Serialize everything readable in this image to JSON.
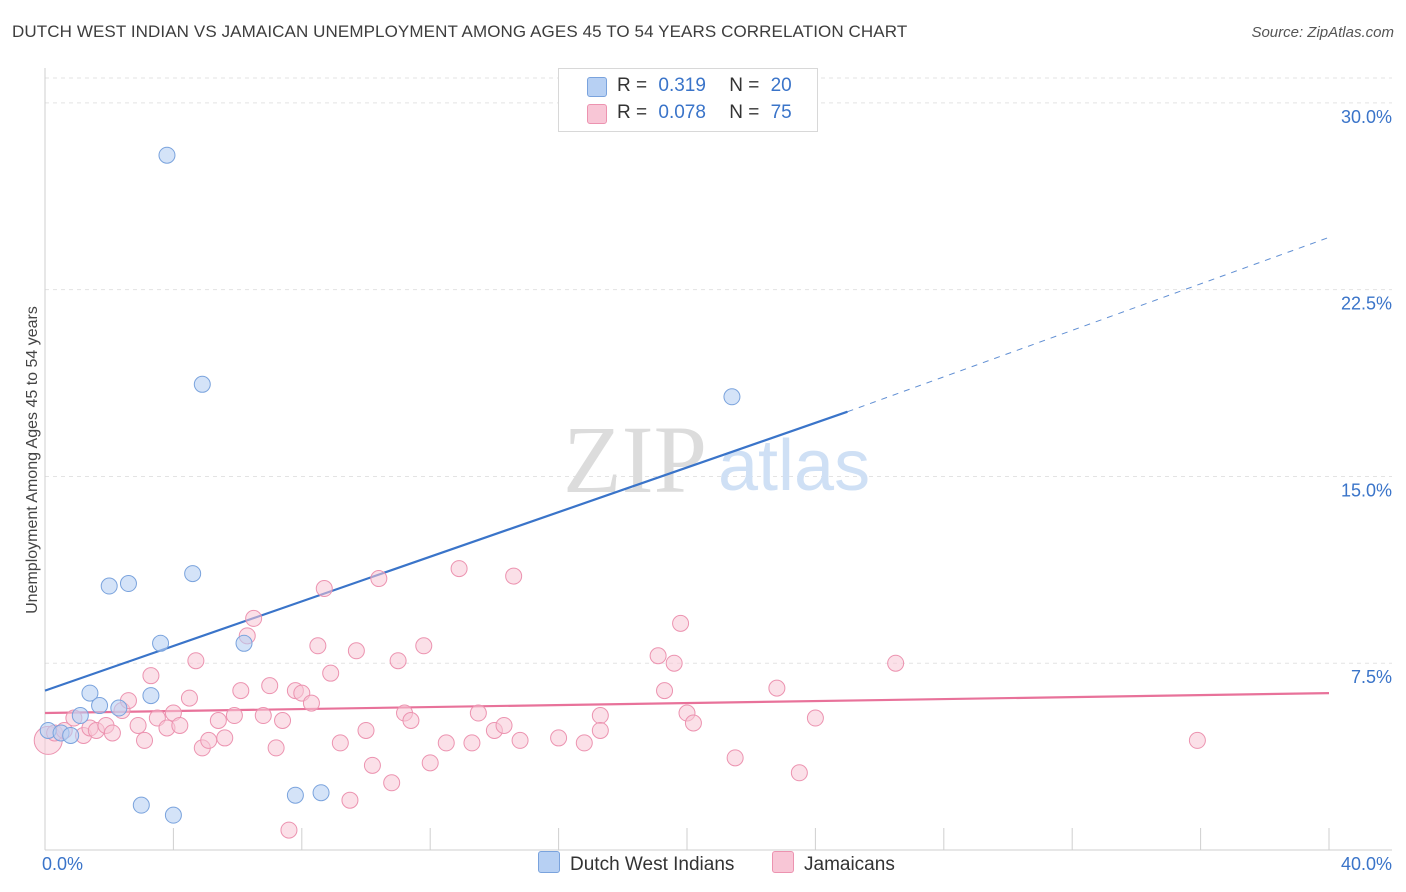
{
  "title": "DUTCH WEST INDIAN VS JAMAICAN UNEMPLOYMENT AMONG AGES 45 TO 54 YEARS CORRELATION CHART",
  "source": "Source: ZipAtlas.com",
  "watermark": {
    "zip": "ZIP",
    "atlas": "atlas"
  },
  "legend": {
    "rows": [
      {
        "r_label": "R =",
        "r_value": "0.319",
        "n_label": "N =",
        "n_value": "20"
      },
      {
        "r_label": "R =",
        "r_value": "0.078",
        "n_label": "N =",
        "n_value": "75"
      }
    ]
  },
  "bottom_legend": {
    "dutch": "Dutch West Indians",
    "jamaicans": "Jamaicans"
  },
  "colors": {
    "blue_fill": "#b7d0f3",
    "blue_stroke": "#7aa3dd",
    "blue_line": "#3a74c9",
    "pink_fill": "#f8c6d6",
    "pink_stroke": "#ec93b0",
    "pink_line": "#e8729a",
    "grid": "#e3e3e3",
    "tick_text": "#3a74c9"
  },
  "chart_data": {
    "type": "scatter",
    "title": "DUTCH WEST INDIAN VS JAMAICAN UNEMPLOYMENT AMONG AGES 45 TO 54 YEARS CORRELATION CHART",
    "xlabel": "",
    "ylabel": "Unemployment Among Ages 45 to 54 years",
    "xlim": [
      0,
      40
    ],
    "ylim": [
      0,
      31
    ],
    "x_tick_labels": [
      "0.0%",
      "40.0%"
    ],
    "y_ticks": [
      7.5,
      15.0,
      22.5,
      30.0
    ],
    "y_tick_labels": [
      "7.5%",
      "15.0%",
      "22.5%",
      "30.0%"
    ],
    "series": [
      {
        "name": "Dutch West Indians",
        "r": 0.319,
        "n": 20,
        "trend": {
          "x0": 0,
          "y0": 6.4,
          "x1": 25,
          "y1": 17.6,
          "dash_to_x": 40,
          "dash_to_y": 24.6
        },
        "points": [
          [
            0.1,
            4.8
          ],
          [
            0.5,
            4.7
          ],
          [
            0.8,
            4.6
          ],
          [
            1.1,
            5.4
          ],
          [
            1.4,
            6.3
          ],
          [
            1.7,
            5.8
          ],
          [
            2.0,
            10.6
          ],
          [
            2.3,
            5.7
          ],
          [
            2.6,
            10.7
          ],
          [
            3.0,
            1.8
          ],
          [
            3.3,
            6.2
          ],
          [
            3.6,
            8.3
          ],
          [
            3.8,
            27.9
          ],
          [
            4.0,
            1.4
          ],
          [
            4.6,
            11.1
          ],
          [
            4.9,
            18.7
          ],
          [
            6.2,
            8.3
          ],
          [
            7.8,
            2.2
          ],
          [
            8.6,
            2.3
          ],
          [
            21.4,
            18.2
          ]
        ]
      },
      {
        "name": "Jamaicans",
        "r": 0.078,
        "n": 75,
        "trend": {
          "x0": 0,
          "y0": 5.5,
          "x1": 40,
          "y1": 6.3
        },
        "points": [
          [
            0.1,
            4.4
          ],
          [
            0.3,
            4.7
          ],
          [
            0.6,
            4.8
          ],
          [
            0.9,
            5.3
          ],
          [
            1.2,
            4.6
          ],
          [
            1.4,
            4.9
          ],
          [
            1.6,
            4.8
          ],
          [
            1.9,
            5.0
          ],
          [
            2.1,
            4.7
          ],
          [
            2.4,
            5.6
          ],
          [
            2.6,
            6.0
          ],
          [
            2.9,
            5.0
          ],
          [
            3.1,
            4.4
          ],
          [
            3.3,
            7.0
          ],
          [
            3.5,
            5.3
          ],
          [
            3.8,
            4.9
          ],
          [
            4.0,
            5.5
          ],
          [
            4.2,
            5.0
          ],
          [
            4.5,
            6.1
          ],
          [
            4.7,
            7.6
          ],
          [
            4.9,
            4.1
          ],
          [
            5.1,
            4.4
          ],
          [
            5.4,
            5.2
          ],
          [
            5.6,
            4.5
          ],
          [
            5.9,
            5.4
          ],
          [
            6.1,
            6.4
          ],
          [
            6.3,
            8.6
          ],
          [
            6.5,
            9.3
          ],
          [
            6.8,
            5.4
          ],
          [
            7.0,
            6.6
          ],
          [
            7.2,
            4.1
          ],
          [
            7.4,
            5.2
          ],
          [
            7.6,
            0.8
          ],
          [
            7.8,
            6.4
          ],
          [
            8.0,
            6.3
          ],
          [
            8.3,
            5.9
          ],
          [
            8.5,
            8.2
          ],
          [
            8.7,
            10.5
          ],
          [
            8.9,
            7.1
          ],
          [
            9.2,
            4.3
          ],
          [
            9.5,
            2.0
          ],
          [
            9.7,
            8.0
          ],
          [
            10.0,
            4.8
          ],
          [
            10.2,
            3.4
          ],
          [
            10.4,
            10.9
          ],
          [
            10.8,
            2.7
          ],
          [
            11.0,
            7.6
          ],
          [
            11.2,
            5.5
          ],
          [
            11.4,
            5.2
          ],
          [
            11.8,
            8.2
          ],
          [
            12.0,
            3.5
          ],
          [
            12.5,
            4.3
          ],
          [
            12.9,
            11.3
          ],
          [
            13.3,
            4.3
          ],
          [
            14.0,
            4.8
          ],
          [
            14.3,
            5.0
          ],
          [
            14.6,
            11.0
          ],
          [
            14.8,
            4.4
          ],
          [
            16.0,
            4.5
          ],
          [
            16.8,
            4.3
          ],
          [
            17.3,
            5.4
          ],
          [
            17.3,
            4.8
          ],
          [
            19.1,
            7.8
          ],
          [
            19.3,
            6.4
          ],
          [
            19.6,
            7.5
          ],
          [
            19.8,
            9.1
          ],
          [
            20.0,
            5.5
          ],
          [
            20.2,
            5.1
          ],
          [
            21.5,
            3.7
          ],
          [
            22.8,
            6.5
          ],
          [
            23.5,
            3.1
          ],
          [
            24.0,
            5.3
          ],
          [
            26.5,
            7.5
          ],
          [
            35.9,
            4.4
          ],
          [
            13.5,
            5.5
          ]
        ]
      }
    ]
  }
}
